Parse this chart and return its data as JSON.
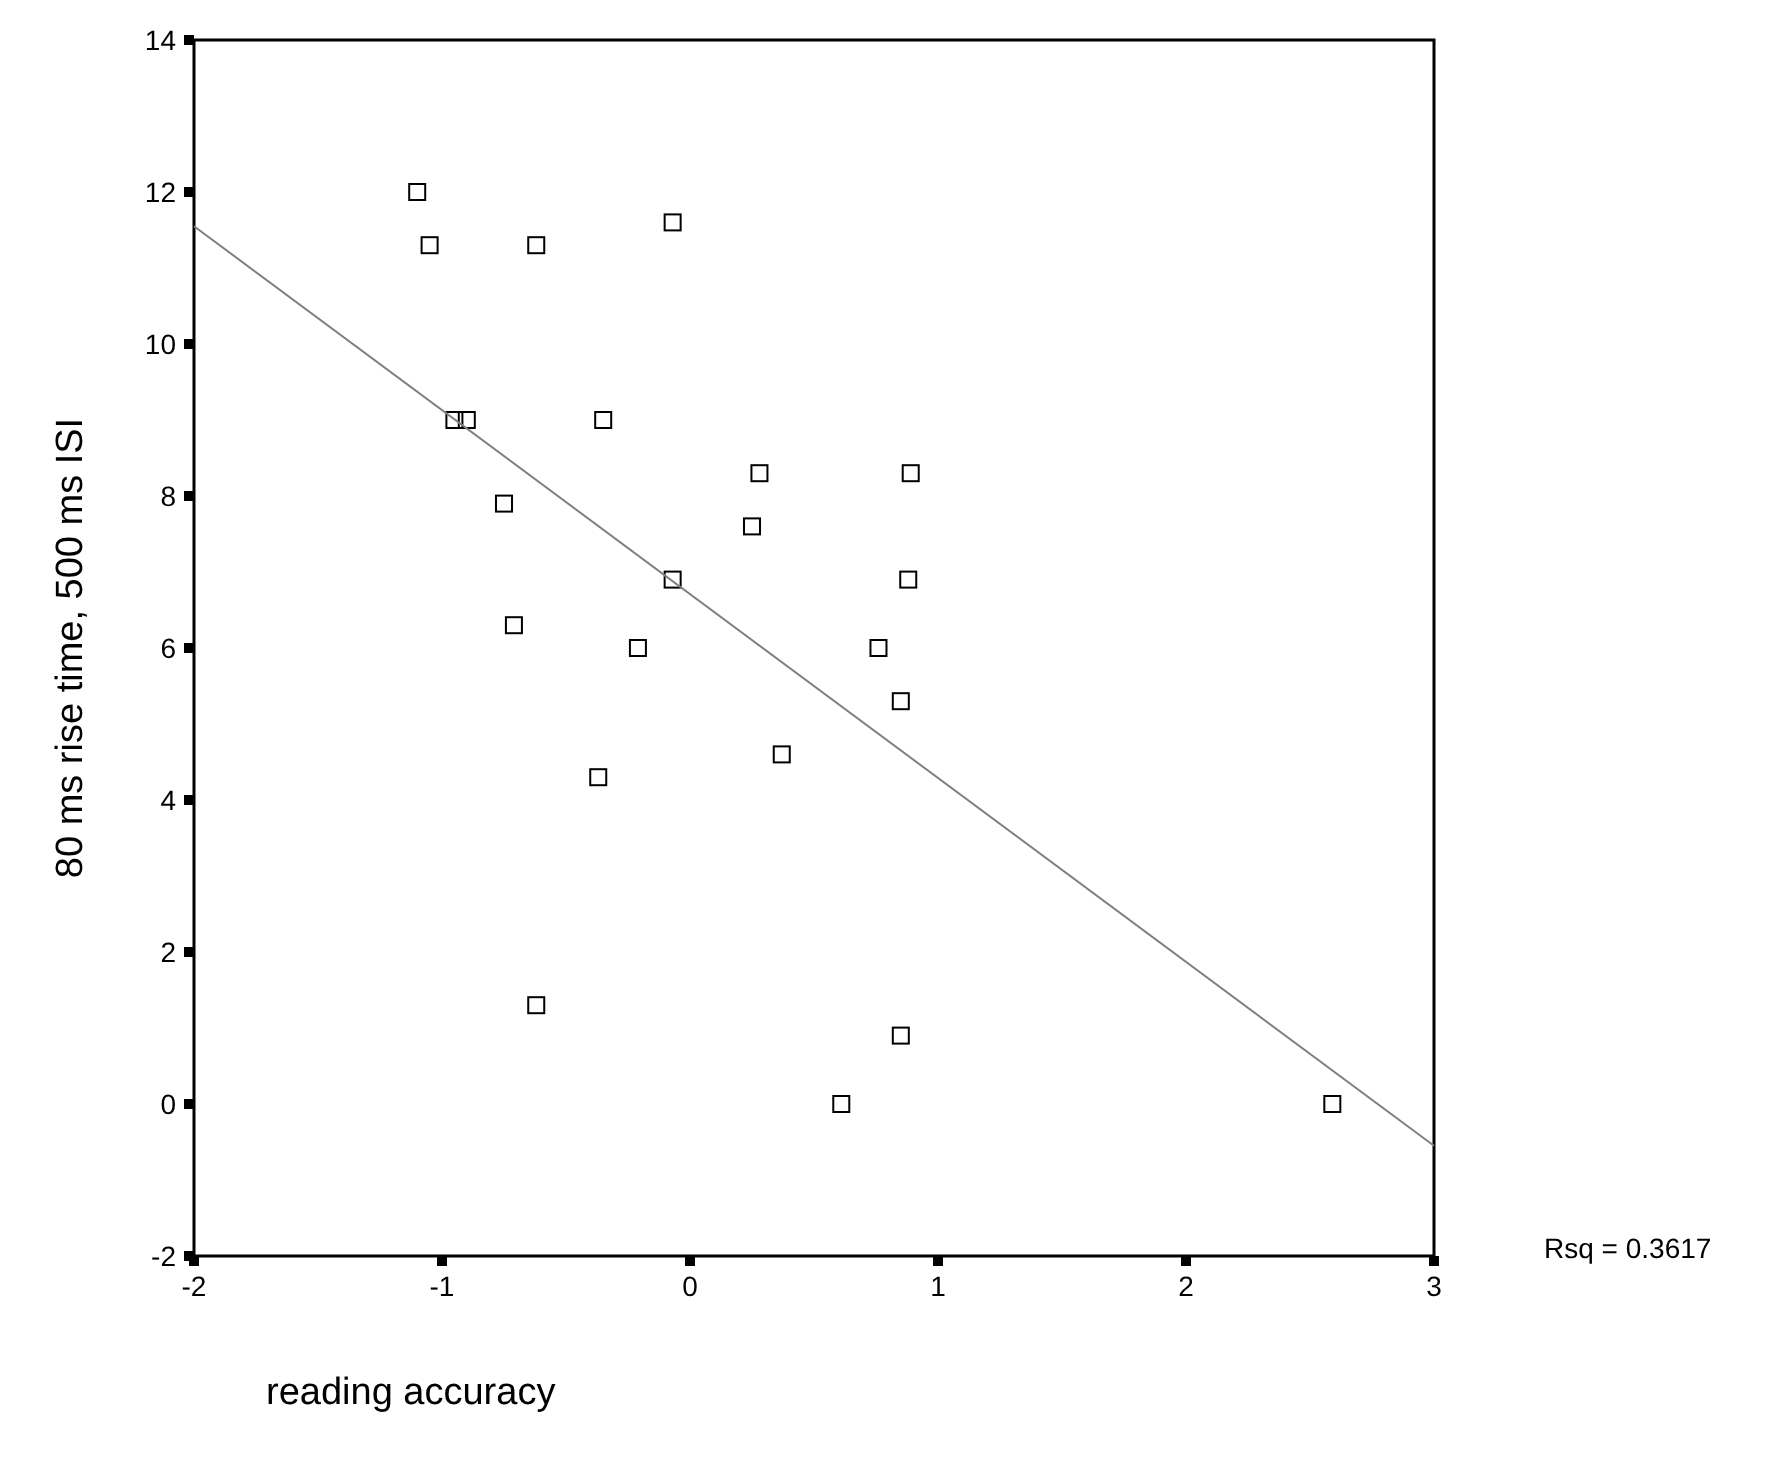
{
  "chart_data": {
    "type": "scatter",
    "xlabel": "reading accuracy",
    "ylabel": "80 ms rise time, 500 ms ISI",
    "annotations": [
      "Rsq = 0.3617"
    ],
    "xlim": [
      -2,
      3
    ],
    "xticks": [
      -2,
      -1,
      0,
      1,
      2,
      3
    ],
    "ylim": [
      -2,
      14
    ],
    "yticks": [
      -2,
      0,
      2,
      4,
      6,
      8,
      10,
      12,
      14
    ],
    "grid": false,
    "series": [
      {
        "color": "#000000",
        "marker": "square",
        "x": [
          -1.1,
          -1.05,
          -0.62,
          -0.07,
          -0.95,
          -0.9,
          -0.35,
          0.28,
          0.89,
          -0.75,
          0.25,
          -0.07,
          0.88,
          -0.71,
          -0.21,
          0.76,
          0.85,
          -0.37,
          0.37,
          -0.62,
          0.85,
          0.61,
          2.59
        ],
        "values": [
          12,
          11.3,
          11.3,
          11.6,
          9,
          9,
          9,
          8.3,
          8.3,
          7.9,
          7.6,
          6.9,
          6.9,
          6.3,
          6,
          6,
          5.3,
          4.3,
          4.6,
          1.3,
          0.9,
          0,
          0
        ]
      },
      {
        "type": "line",
        "color": "#808080",
        "line_style": "solid",
        "x": [
          -2,
          3
        ],
        "values": [
          11.55,
          -0.55
        ]
      }
    ]
  }
}
